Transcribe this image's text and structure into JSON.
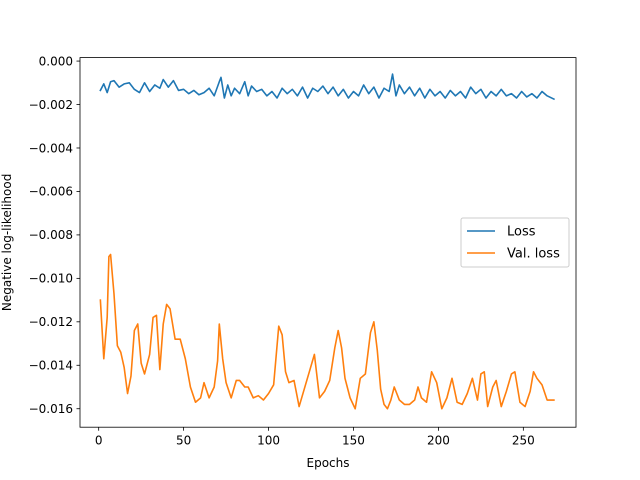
{
  "chart_data": {
    "type": "line",
    "title": "",
    "xlabel": "Epochs",
    "ylabel": "Negative log-likelihood",
    "xlim": [
      -11,
      281
    ],
    "ylim": [
      -0.01685,
      0.00016
    ],
    "xticks": [
      0,
      50,
      100,
      150,
      200,
      250
    ],
    "xtick_labels": [
      "0",
      "50",
      "100",
      "150",
      "200",
      "250"
    ],
    "yticks": [
      0.0,
      -0.002,
      -0.004,
      -0.006,
      -0.008,
      -0.01,
      -0.012,
      -0.014,
      -0.016
    ],
    "ytick_labels": [
      "0.000",
      "−0.002",
      "−0.004",
      "−0.006",
      "−0.008",
      "−0.010",
      "−0.012",
      "−0.014",
      "−0.016"
    ],
    "grid": false,
    "legend_position": "center-right",
    "series": [
      {
        "name": "Loss",
        "color": "#1f77b4",
        "points": [
          [
            1,
            -0.00135
          ],
          [
            3,
            -0.00105
          ],
          [
            5,
            -0.00145
          ],
          [
            7,
            -0.00095
          ],
          [
            9,
            -0.0009
          ],
          [
            12,
            -0.0012
          ],
          [
            15,
            -0.00105
          ],
          [
            18,
            -0.001
          ],
          [
            21,
            -0.0013
          ],
          [
            24,
            -0.00145
          ],
          [
            27,
            -0.001
          ],
          [
            30,
            -0.0014
          ],
          [
            33,
            -0.0011
          ],
          [
            36,
            -0.00125
          ],
          [
            38,
            -0.00085
          ],
          [
            41,
            -0.0012
          ],
          [
            44,
            -0.0009
          ],
          [
            47,
            -0.00135
          ],
          [
            50,
            -0.0013
          ],
          [
            53,
            -0.0015
          ],
          [
            56,
            -0.00135
          ],
          [
            59,
            -0.00155
          ],
          [
            62,
            -0.00145
          ],
          [
            65,
            -0.00125
          ],
          [
            68,
            -0.0016
          ],
          [
            71,
            -0.00095
          ],
          [
            72,
            -0.00075
          ],
          [
            74,
            -0.0017
          ],
          [
            76,
            -0.0011
          ],
          [
            78,
            -0.0016
          ],
          [
            80,
            -0.00125
          ],
          [
            83,
            -0.0015
          ],
          [
            86,
            -0.00095
          ],
          [
            88,
            -0.0016
          ],
          [
            90,
            -0.00115
          ],
          [
            93,
            -0.0014
          ],
          [
            96,
            -0.0013
          ],
          [
            99,
            -0.0016
          ],
          [
            102,
            -0.0014
          ],
          [
            105,
            -0.0017
          ],
          [
            108,
            -0.00125
          ],
          [
            111,
            -0.0015
          ],
          [
            114,
            -0.0013
          ],
          [
            117,
            -0.0016
          ],
          [
            120,
            -0.0012
          ],
          [
            123,
            -0.0017
          ],
          [
            126,
            -0.00125
          ],
          [
            129,
            -0.0014
          ],
          [
            132,
            -0.00115
          ],
          [
            135,
            -0.0015
          ],
          [
            138,
            -0.0012
          ],
          [
            141,
            -0.0016
          ],
          [
            144,
            -0.0013
          ],
          [
            147,
            -0.0017
          ],
          [
            150,
            -0.0014
          ],
          [
            153,
            -0.0016
          ],
          [
            156,
            -0.0011
          ],
          [
            159,
            -0.0015
          ],
          [
            162,
            -0.0012
          ],
          [
            165,
            -0.0017
          ],
          [
            168,
            -0.00125
          ],
          [
            171,
            -0.0014
          ],
          [
            173,
            -0.0006
          ],
          [
            175,
            -0.0016
          ],
          [
            177,
            -0.0011
          ],
          [
            180,
            -0.0015
          ],
          [
            183,
            -0.0012
          ],
          [
            186,
            -0.0016
          ],
          [
            189,
            -0.00125
          ],
          [
            192,
            -0.0017
          ],
          [
            195,
            -0.0013
          ],
          [
            198,
            -0.0016
          ],
          [
            201,
            -0.0014
          ],
          [
            204,
            -0.0017
          ],
          [
            207,
            -0.00135
          ],
          [
            210,
            -0.0016
          ],
          [
            213,
            -0.0014
          ],
          [
            216,
            -0.0017
          ],
          [
            219,
            -0.0012
          ],
          [
            222,
            -0.0015
          ],
          [
            225,
            -0.0013
          ],
          [
            228,
            -0.0017
          ],
          [
            231,
            -0.0014
          ],
          [
            234,
            -0.0016
          ],
          [
            237,
            -0.0013
          ],
          [
            240,
            -0.0016
          ],
          [
            243,
            -0.0015
          ],
          [
            246,
            -0.0017
          ],
          [
            249,
            -0.0014
          ],
          [
            252,
            -0.00165
          ],
          [
            255,
            -0.0015
          ],
          [
            258,
            -0.0017
          ],
          [
            261,
            -0.0014
          ],
          [
            264,
            -0.0016
          ],
          [
            268,
            -0.00175
          ]
        ]
      },
      {
        "name": "Val. loss",
        "color": "#ff7f0e",
        "points": [
          [
            1,
            -0.011
          ],
          [
            3,
            -0.0137
          ],
          [
            5,
            -0.0118
          ],
          [
            6,
            -0.009
          ],
          [
            7,
            -0.0089
          ],
          [
            9,
            -0.0107
          ],
          [
            11,
            -0.0131
          ],
          [
            13,
            -0.0134
          ],
          [
            15,
            -0.0141
          ],
          [
            17,
            -0.0153
          ],
          [
            19,
            -0.0145
          ],
          [
            21,
            -0.0124
          ],
          [
            23,
            -0.0121
          ],
          [
            25,
            -0.0139
          ],
          [
            27,
            -0.0144
          ],
          [
            30,
            -0.0135
          ],
          [
            32,
            -0.0118
          ],
          [
            34,
            -0.0117
          ],
          [
            36,
            -0.0142
          ],
          [
            38,
            -0.0121
          ],
          [
            40,
            -0.0112
          ],
          [
            42,
            -0.0114
          ],
          [
            45,
            -0.0128
          ],
          [
            48,
            -0.0128
          ],
          [
            51,
            -0.0137
          ],
          [
            54,
            -0.015
          ],
          [
            57,
            -0.0157
          ],
          [
            60,
            -0.0155
          ],
          [
            62,
            -0.0148
          ],
          [
            65,
            -0.0155
          ],
          [
            68,
            -0.015
          ],
          [
            70,
            -0.0138
          ],
          [
            71,
            -0.0121
          ],
          [
            73,
            -0.0137
          ],
          [
            75,
            -0.0148
          ],
          [
            78,
            -0.0155
          ],
          [
            81,
            -0.0147
          ],
          [
            83,
            -0.0147
          ],
          [
            86,
            -0.015
          ],
          [
            88,
            -0.015
          ],
          [
            91,
            -0.0155
          ],
          [
            94,
            -0.0154
          ],
          [
            97,
            -0.0156
          ],
          [
            100,
            -0.0153
          ],
          [
            103,
            -0.0149
          ],
          [
            106,
            -0.0122
          ],
          [
            108,
            -0.0126
          ],
          [
            110,
            -0.0143
          ],
          [
            112,
            -0.0148
          ],
          [
            115,
            -0.0147
          ],
          [
            118,
            -0.0159
          ],
          [
            121,
            -0.0151
          ],
          [
            124,
            -0.0143
          ],
          [
            127,
            -0.0135
          ],
          [
            130,
            -0.0155
          ],
          [
            133,
            -0.0152
          ],
          [
            136,
            -0.0147
          ],
          [
            139,
            -0.0132
          ],
          [
            141,
            -0.0124
          ],
          [
            143,
            -0.0132
          ],
          [
            145,
            -0.0146
          ],
          [
            148,
            -0.0155
          ],
          [
            151,
            -0.016
          ],
          [
            154,
            -0.0146
          ],
          [
            157,
            -0.0144
          ],
          [
            160,
            -0.0125
          ],
          [
            162,
            -0.012
          ],
          [
            164,
            -0.0133
          ],
          [
            166,
            -0.0151
          ],
          [
            168,
            -0.0158
          ],
          [
            170,
            -0.016
          ],
          [
            172,
            -0.0156
          ],
          [
            174,
            -0.015
          ],
          [
            177,
            -0.0156
          ],
          [
            180,
            -0.0158
          ],
          [
            183,
            -0.0158
          ],
          [
            186,
            -0.0156
          ],
          [
            188,
            -0.015
          ],
          [
            190,
            -0.0155
          ],
          [
            193,
            -0.0157
          ],
          [
            196,
            -0.0143
          ],
          [
            199,
            -0.0148
          ],
          [
            202,
            -0.016
          ],
          [
            205,
            -0.0155
          ],
          [
            208,
            -0.0146
          ],
          [
            211,
            -0.0157
          ],
          [
            214,
            -0.0158
          ],
          [
            217,
            -0.0153
          ],
          [
            220,
            -0.0146
          ],
          [
            223,
            -0.0156
          ],
          [
            225,
            -0.0144
          ],
          [
            227,
            -0.0143
          ],
          [
            229,
            -0.0159
          ],
          [
            232,
            -0.015
          ],
          [
            234,
            -0.0147
          ],
          [
            237,
            -0.0159
          ],
          [
            240,
            -0.0152
          ],
          [
            243,
            -0.0144
          ],
          [
            245,
            -0.0143
          ],
          [
            248,
            -0.0157
          ],
          [
            251,
            -0.0159
          ],
          [
            254,
            -0.0152
          ],
          [
            256,
            -0.0143
          ],
          [
            258,
            -0.0146
          ],
          [
            261,
            -0.0149
          ],
          [
            264,
            -0.0156
          ],
          [
            266,
            -0.0156
          ],
          [
            268,
            -0.0156
          ]
        ]
      }
    ]
  }
}
